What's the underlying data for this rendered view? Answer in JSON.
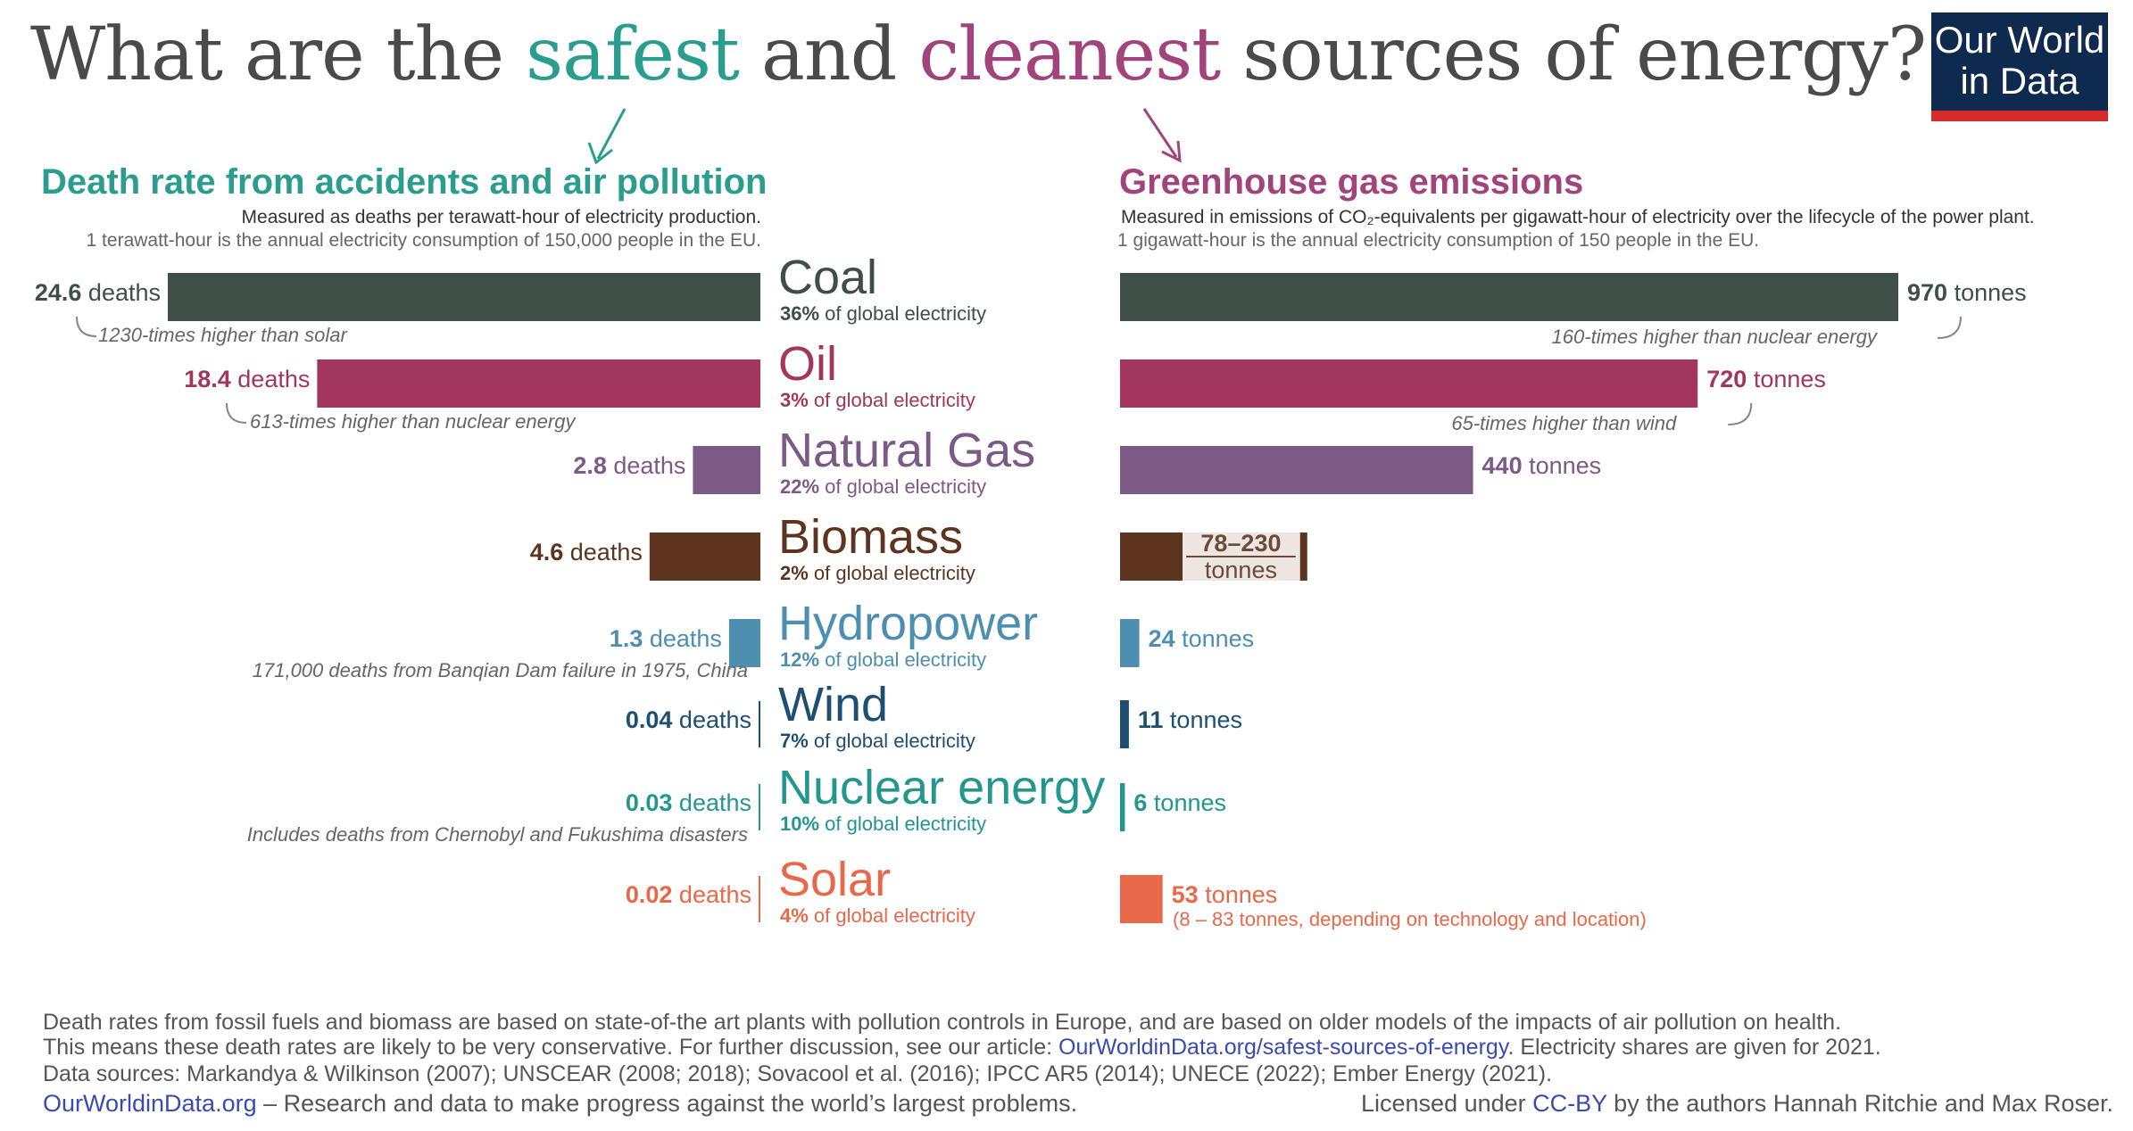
{
  "title": {
    "part1": "What are the ",
    "safest": "safest",
    "part2": " and ",
    "cleanest": "cleanest",
    "part3": " sources of energy?"
  },
  "logo": {
    "line1": "Our World",
    "line2": "in Data"
  },
  "colors": {
    "coal": "#3f4f48",
    "oil": "#a2365c",
    "gas": "#7b5a86",
    "biomass": "#5c3420",
    "hydro": "#4d8fb0",
    "wind": "#1e4f73",
    "nuclear": "#23968e",
    "solar": "#e8684a",
    "safe": "#2a9d8f",
    "clean": "#a2447c"
  },
  "left_panel": {
    "title": "Death rate from accidents and air pollution",
    "subtitle": "Measured as deaths per terawatt-hour of electricity production.",
    "note": "1 terawatt-hour is the annual electricity consumption of 150,000 people in the EU."
  },
  "right_panel": {
    "title": "Greenhouse gas emissions",
    "subtitle": "Measured in emissions of CO₂-equivalents per gigawatt-hour of electricity over the lifecycle of the power plant.",
    "note": "1 gigawatt-hour is the annual electricity consumption of 150 people in the EU."
  },
  "sources": [
    {
      "name": "Coal",
      "share": "36%",
      "share_suffix": " of global electricity",
      "deaths_value": "24.6",
      "deaths_unit": " deaths",
      "emissions_value": "970",
      "emissions_unit": " tonnes",
      "death_note": "1230-times higher than solar",
      "emission_note": "160-times higher than nuclear energy"
    },
    {
      "name": "Oil",
      "share": "3%",
      "share_suffix": " of global electricity",
      "deaths_value": "18.4",
      "deaths_unit": " deaths",
      "emissions_value": "720",
      "emissions_unit": " tonnes",
      "death_note": "613-times higher than nuclear energy",
      "emission_note": "65-times higher than wind"
    },
    {
      "name": "Natural Gas",
      "share": "22%",
      "share_suffix": " of global electricity",
      "deaths_value": "2.8",
      "deaths_unit": " deaths",
      "emissions_value": "440",
      "emissions_unit": " tonnes"
    },
    {
      "name": "Biomass",
      "share": "2%",
      "share_suffix": " of global electricity",
      "deaths_value": "4.6",
      "deaths_unit": " deaths",
      "emissions_value": "78–230",
      "emissions_unit": "tonnes"
    },
    {
      "name": "Hydropower",
      "share": "12%",
      "share_suffix": " of global electricity",
      "deaths_value": "1.3",
      "deaths_unit": " deaths",
      "emissions_value": "24",
      "emissions_unit": " tonnes",
      "death_note": "171,000 deaths from Banqian Dam failure in 1975, China"
    },
    {
      "name": "Wind",
      "share": "7%",
      "share_suffix": " of global electricity",
      "deaths_value": "0.04",
      "deaths_unit": " deaths",
      "emissions_value": "11",
      "emissions_unit": " tonnes"
    },
    {
      "name": "Nuclear energy",
      "share": "10%",
      "share_suffix": " of global electricity",
      "deaths_value": "0.03",
      "deaths_unit": " deaths",
      "emissions_value": "6",
      "emissions_unit": " tonnes",
      "death_note": "Includes deaths from Chernobyl and Fukushima disasters"
    },
    {
      "name": "Solar",
      "share": "4%",
      "share_suffix": " of global electricity",
      "deaths_value": "0.02",
      "deaths_unit": " deaths",
      "emissions_value": "53",
      "emissions_unit": " tonnes",
      "emission_note": "(8 – 83 tonnes, depending on technology and location)"
    }
  ],
  "chart_data": [
    {
      "type": "bar",
      "title": "Death rate from accidents and air pollution",
      "ylabel": "deaths per terawatt-hour",
      "categories": [
        "Coal",
        "Oil",
        "Natural Gas",
        "Biomass",
        "Hydropower",
        "Wind",
        "Nuclear energy",
        "Solar"
      ],
      "values": [
        24.6,
        18.4,
        2.8,
        4.6,
        1.3,
        0.04,
        0.03,
        0.02
      ],
      "orientation": "horizontal",
      "xlim": [
        0,
        24.6
      ]
    },
    {
      "type": "bar",
      "title": "Greenhouse gas emissions",
      "ylabel": "tonnes CO2-eq per gigawatt-hour",
      "categories": [
        "Coal",
        "Oil",
        "Natural Gas",
        "Biomass",
        "Hydropower",
        "Wind",
        "Nuclear energy",
        "Solar"
      ],
      "values": [
        970,
        720,
        440,
        230,
        24,
        11,
        6,
        53
      ],
      "ranges": {
        "Biomass": [
          78,
          230
        ],
        "Solar": [
          8,
          83
        ]
      },
      "orientation": "horizontal",
      "xlim": [
        0,
        970
      ]
    }
  ],
  "footer": {
    "line1": "Death rates from fossil fuels and biomass are based on state-of-the art plants with pollution controls in Europe, and are based on older models of the impacts of air pollution on health.",
    "line2a": "This means these death rates are likely to be very conservative. For further discussion, see our article: ",
    "line2_link": "OurWorldinData.org/safest-sources-of-energy",
    "line2b": ". Electricity shares are given for 2021.",
    "line3": "Data sources: Markandya & Wilkinson (2007); UNSCEAR (2008; 2018); Sovacool et al. (2016); IPCC AR5 (2014); UNECE (2022); Ember Energy (2021).",
    "owid_link": "OurWorldinData.org",
    "tagline": " – Research and data to make progress against the world’s largest problems.",
    "license_a": "Licensed under ",
    "license_link": "CC-BY",
    "license_b": " by the authors Hannah Ritchie and Max Roser."
  }
}
